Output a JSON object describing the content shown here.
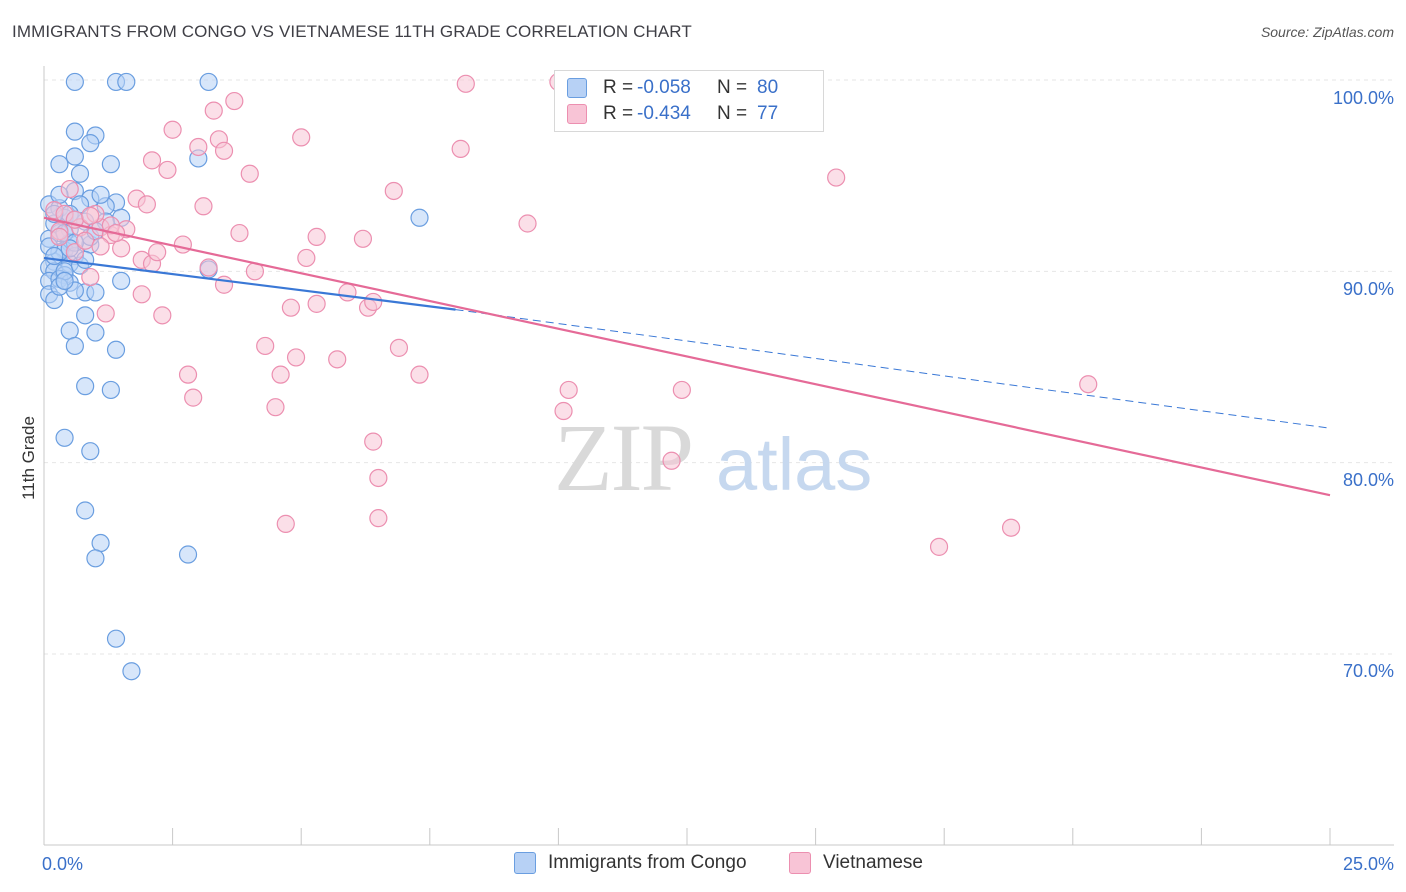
{
  "header": {
    "title": "IMMIGRANTS FROM CONGO VS VIETNAMESE 11TH GRADE CORRELATION CHART",
    "source": "Source: ZipAtlas.com"
  },
  "legend_stats": {
    "r_label": "R =",
    "n_label": "N =",
    "rows": [
      {
        "r": "-0.058",
        "n": "80"
      },
      {
        "r": "-0.434",
        "n": "77"
      }
    ]
  },
  "colors": {
    "congo_fill": "#b7d1f5",
    "congo_stroke": "#6a9ee0",
    "congo_line": "#3a78d6",
    "viet_fill": "#f8c4d6",
    "viet_stroke": "#ec8fb0",
    "viet_line": "#e56a97",
    "tick_label": "#3a70c9",
    "grid": "#e6e6e6"
  },
  "watermark": {
    "zip": "ZIP",
    "atlas": "atlas"
  },
  "chart_data": {
    "type": "scatter",
    "title": "IMMIGRANTS FROM CONGO VS VIETNAMESE 11TH GRADE CORRELATION CHART",
    "ylabel": "11th Grade",
    "xlabel": "",
    "xlim": [
      0,
      25
    ],
    "ylim": [
      60,
      100
    ],
    "x_tick_labels": [
      "0.0%",
      "25.0%"
    ],
    "y_tick_labels": [
      "100.0%",
      "90.0%",
      "80.0%",
      "70.0%"
    ],
    "y_ticks": [
      100,
      90,
      80,
      70
    ],
    "grid": true,
    "series": [
      {
        "name": "Immigrants from Congo",
        "r": -0.058,
        "n": 80,
        "trend": {
          "x_start": 0,
          "y_start": 90.7,
          "x_solid_end": 8.0,
          "y_solid_end": 88.0,
          "x_dashed_end": 25,
          "y_dashed_end": 81.8
        },
        "points": [
          [
            0.6,
            99.9
          ],
          [
            1.4,
            99.9
          ],
          [
            1.6,
            99.9
          ],
          [
            3.2,
            99.9
          ],
          [
            0.6,
            97.3
          ],
          [
            1.0,
            97.1
          ],
          [
            0.9,
            96.7
          ],
          [
            0.6,
            96.0
          ],
          [
            3.0,
            95.9
          ],
          [
            0.3,
            95.6
          ],
          [
            1.3,
            95.6
          ],
          [
            0.7,
            95.1
          ],
          [
            0.6,
            94.2
          ],
          [
            0.9,
            93.8
          ],
          [
            1.4,
            93.6
          ],
          [
            1.2,
            93.4
          ],
          [
            0.1,
            93.5
          ],
          [
            0.3,
            93.3
          ],
          [
            0.4,
            92.8
          ],
          [
            0.8,
            92.6
          ],
          [
            1.5,
            92.8
          ],
          [
            0.5,
            92.2
          ],
          [
            0.3,
            92.0
          ],
          [
            0.1,
            91.7
          ],
          [
            0.5,
            91.5
          ],
          [
            0.9,
            91.4
          ],
          [
            0.4,
            91.1
          ],
          [
            0.6,
            90.8
          ],
          [
            0.2,
            90.5
          ],
          [
            0.5,
            90.4
          ],
          [
            0.1,
            90.2
          ],
          [
            0.2,
            90.0
          ],
          [
            0.4,
            89.8
          ],
          [
            0.1,
            89.5
          ],
          [
            0.3,
            89.6
          ],
          [
            0.5,
            89.4
          ],
          [
            1.5,
            89.5
          ],
          [
            0.8,
            88.9
          ],
          [
            1.0,
            88.9
          ],
          [
            0.1,
            88.8
          ],
          [
            3.2,
            90.1
          ],
          [
            7.3,
            92.8
          ],
          [
            0.8,
            87.7
          ],
          [
            0.5,
            86.9
          ],
          [
            1.0,
            86.8
          ],
          [
            0.6,
            86.1
          ],
          [
            1.4,
            85.9
          ],
          [
            0.8,
            84.0
          ],
          [
            1.3,
            83.8
          ],
          [
            0.4,
            81.3
          ],
          [
            0.9,
            80.6
          ],
          [
            0.8,
            77.5
          ],
          [
            1.1,
            75.8
          ],
          [
            1.0,
            75.0
          ],
          [
            2.8,
            75.2
          ],
          [
            1.4,
            70.8
          ],
          [
            1.7,
            69.1
          ],
          [
            0.2,
            92.5
          ],
          [
            0.7,
            93.5
          ],
          [
            1.1,
            94.0
          ],
          [
            0.3,
            91.0
          ],
          [
            0.6,
            89.0
          ],
          [
            0.2,
            88.5
          ],
          [
            0.4,
            90.0
          ],
          [
            0.9,
            91.8
          ],
          [
            1.2,
            92.6
          ],
          [
            0.5,
            93.0
          ],
          [
            0.3,
            94.0
          ],
          [
            0.1,
            91.3
          ],
          [
            0.7,
            90.3
          ],
          [
            0.4,
            92.0
          ],
          [
            0.2,
            93.0
          ],
          [
            0.6,
            91.5
          ],
          [
            0.3,
            89.2
          ],
          [
            0.8,
            90.6
          ],
          [
            0.5,
            91.2
          ],
          [
            1.0,
            92.1
          ],
          [
            0.2,
            90.8
          ],
          [
            0.4,
            89.5
          ],
          [
            0.6,
            92.7
          ]
        ]
      },
      {
        "name": "Vietnamese",
        "r": -0.434,
        "n": 77,
        "trend": {
          "x_start": 0,
          "y_start": 92.8,
          "x_end": 25,
          "y_end": 78.3
        },
        "points": [
          [
            10.0,
            99.9
          ],
          [
            8.2,
            99.8
          ],
          [
            3.7,
            98.9
          ],
          [
            3.3,
            98.4
          ],
          [
            2.5,
            97.4
          ],
          [
            5.0,
            97.0
          ],
          [
            3.4,
            96.9
          ],
          [
            3.0,
            96.5
          ],
          [
            3.5,
            96.3
          ],
          [
            8.1,
            96.4
          ],
          [
            2.1,
            95.8
          ],
          [
            2.4,
            95.3
          ],
          [
            4.0,
            95.1
          ],
          [
            15.4,
            94.9
          ],
          [
            6.8,
            94.2
          ],
          [
            0.5,
            94.3
          ],
          [
            1.8,
            93.8
          ],
          [
            3.1,
            93.4
          ],
          [
            0.2,
            93.2
          ],
          [
            9.4,
            92.5
          ],
          [
            0.7,
            92.3
          ],
          [
            1.1,
            92.3
          ],
          [
            1.3,
            91.9
          ],
          [
            1.6,
            92.2
          ],
          [
            0.3,
            92.1
          ],
          [
            3.8,
            92.0
          ],
          [
            5.3,
            91.8
          ],
          [
            6.2,
            91.7
          ],
          [
            2.7,
            91.4
          ],
          [
            1.5,
            91.2
          ],
          [
            0.6,
            91.0
          ],
          [
            1.9,
            90.6
          ],
          [
            5.1,
            90.7
          ],
          [
            2.1,
            90.4
          ],
          [
            3.2,
            90.2
          ],
          [
            4.1,
            90.0
          ],
          [
            0.9,
            89.7
          ],
          [
            3.5,
            89.3
          ],
          [
            1.9,
            88.8
          ],
          [
            5.9,
            88.9
          ],
          [
            4.8,
            88.1
          ],
          [
            5.3,
            88.3
          ],
          [
            6.3,
            88.1
          ],
          [
            6.4,
            88.4
          ],
          [
            2.3,
            87.7
          ],
          [
            1.2,
            87.8
          ],
          [
            4.3,
            86.1
          ],
          [
            6.9,
            86.0
          ],
          [
            4.9,
            85.5
          ],
          [
            5.7,
            85.4
          ],
          [
            2.8,
            84.6
          ],
          [
            4.6,
            84.6
          ],
          [
            7.3,
            84.6
          ],
          [
            10.2,
            83.8
          ],
          [
            12.4,
            83.8
          ],
          [
            20.3,
            84.1
          ],
          [
            2.9,
            83.4
          ],
          [
            4.5,
            82.9
          ],
          [
            10.1,
            82.7
          ],
          [
            6.4,
            81.1
          ],
          [
            12.2,
            80.1
          ],
          [
            6.5,
            79.2
          ],
          [
            6.5,
            77.1
          ],
          [
            4.7,
            76.8
          ],
          [
            18.8,
            76.6
          ],
          [
            17.4,
            75.6
          ],
          [
            1.3,
            92.4
          ],
          [
            0.8,
            91.6
          ],
          [
            1.1,
            91.3
          ],
          [
            0.4,
            93.0
          ],
          [
            2.0,
            93.5
          ],
          [
            1.4,
            92.0
          ],
          [
            0.6,
            92.7
          ],
          [
            1.0,
            93.0
          ],
          [
            0.3,
            91.8
          ],
          [
            2.2,
            91.0
          ],
          [
            0.9,
            92.9
          ]
        ]
      }
    ]
  }
}
